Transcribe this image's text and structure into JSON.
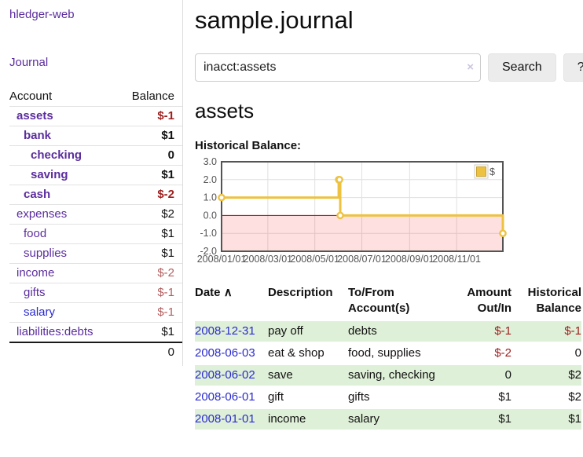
{
  "app": {
    "brand": "hledger-web"
  },
  "colors": {
    "purple": "#5b2d9e",
    "blue": "#2a2ad0",
    "negStrong": "#9d1d1d",
    "negMuted": "#b25e5e",
    "rowGreen": "#dff0d8",
    "btnBg": "#ececec",
    "chartLine": "#edc240",
    "chartLineDark": "#c9a22e",
    "chartBorder": "#545454",
    "chartGrid": "#e0e0e0",
    "chartZero": "#aa0000",
    "chartNegFill": "rgba(255,0,0,0.12)"
  },
  "sidebar": {
    "journal_label": "Journal",
    "table": {
      "headers": [
        "Account",
        "Balance"
      ],
      "rows": [
        {
          "account": "assets",
          "level": 1,
          "bold": true,
          "color": "purple",
          "balance": "$-1",
          "balance_style": "neg-strong"
        },
        {
          "account": "bank",
          "level": 2,
          "bold": true,
          "color": "purple",
          "balance": "$1",
          "balance_style": "plain"
        },
        {
          "account": "checking",
          "level": 3,
          "bold": true,
          "color": "purple",
          "balance": "0",
          "balance_style": "plain"
        },
        {
          "account": "saving",
          "level": 3,
          "bold": true,
          "color": "purple",
          "balance": "$1",
          "balance_style": "plain"
        },
        {
          "account": "cash",
          "level": 2,
          "bold": true,
          "color": "purple",
          "balance": "$-2",
          "balance_style": "neg-strong"
        },
        {
          "account": "expenses",
          "level": 1,
          "bold": false,
          "color": "purple",
          "balance": "$2",
          "balance_style": "plain"
        },
        {
          "account": "food",
          "level": 2,
          "bold": false,
          "color": "purple",
          "balance": "$1",
          "balance_style": "plain"
        },
        {
          "account": "supplies",
          "level": 2,
          "bold": false,
          "color": "purple",
          "balance": "$1",
          "balance_style": "plain"
        },
        {
          "account": "income",
          "level": 1,
          "bold": false,
          "color": "purple",
          "balance": "$-2",
          "balance_style": "neg-muted"
        },
        {
          "account": "gifts",
          "level": 2,
          "bold": false,
          "color": "purple",
          "balance": "$-1",
          "balance_style": "neg-muted"
        },
        {
          "account": "salary",
          "level": 2,
          "bold": false,
          "color": "blue",
          "balance": "$-1",
          "balance_style": "neg-muted"
        },
        {
          "account": "liabilities:debts",
          "level": 1,
          "bold": false,
          "color": "purple",
          "balance": "$1",
          "balance_style": "plain"
        }
      ],
      "total": "0"
    }
  },
  "main": {
    "title": "sample.journal",
    "search": {
      "value": "inacct:assets",
      "clear_icon": "×",
      "button_label": "Search",
      "help_label": "?"
    },
    "account_heading": "assets",
    "chart_label": "Historical Balance:",
    "register": {
      "headers": [
        "Date",
        "Description",
        "To/From Account(s)",
        "Amount Out/In",
        "Historical Balance"
      ],
      "sort_icon": "∧",
      "rows": [
        {
          "date": "2008-12-31",
          "description": "pay off",
          "accounts": "debts",
          "amount": "$-1",
          "amount_neg": true,
          "balance": "$-1",
          "balance_neg": true
        },
        {
          "date": "2008-06-03",
          "description": "eat & shop",
          "accounts": "food, supplies",
          "amount": "$-2",
          "amount_neg": true,
          "balance": "0",
          "balance_neg": false
        },
        {
          "date": "2008-06-02",
          "description": "save",
          "accounts": "saving, checking",
          "amount": "0",
          "amount_neg": false,
          "balance": "$2",
          "balance_neg": false
        },
        {
          "date": "2008-06-01",
          "description": "gift",
          "accounts": "gifts",
          "amount": "$1",
          "amount_neg": false,
          "balance": "$2",
          "balance_neg": false
        },
        {
          "date": "2008-01-01",
          "description": "income",
          "accounts": "salary",
          "amount": "$1",
          "amount_neg": false,
          "balance": "$1",
          "balance_neg": false
        }
      ]
    }
  },
  "chart_data": {
    "type": "line",
    "title": "Historical Balance",
    "step": true,
    "series": [
      {
        "name": "$",
        "points": [
          [
            "2008-01-01",
            1
          ],
          [
            "2008-06-01",
            2
          ],
          [
            "2008-06-02",
            2
          ],
          [
            "2008-06-03",
            0
          ],
          [
            "2008-12-31",
            -1
          ]
        ]
      }
    ],
    "x_range": [
      "2008-01-01",
      "2008-12-31"
    ],
    "ylim": [
      -2,
      3
    ],
    "ytick_labels": [
      "3.0",
      "2.0",
      "1.0",
      "0.0",
      "-1.0",
      "-2.0"
    ],
    "xtick_labels": [
      "2008/01/01",
      "2008/03/01",
      "2008/05/01",
      "2008/07/01",
      "2008/09/01",
      "2008/11/01"
    ],
    "legend": {
      "label": "$",
      "position": "top-right"
    },
    "negative_region_fill": true,
    "zero_line": true,
    "grid": true
  }
}
